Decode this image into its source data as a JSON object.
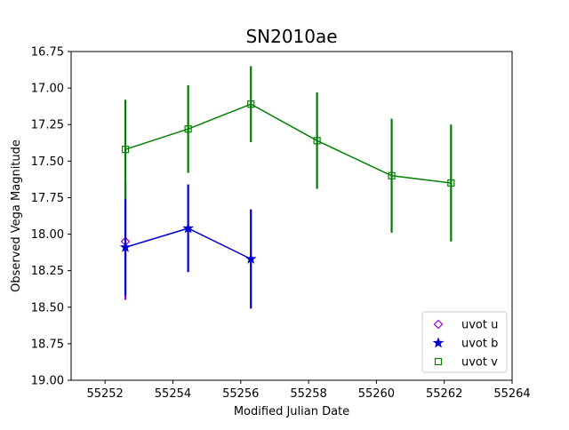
{
  "chart_data": {
    "type": "scatter",
    "title": "SN2010ae",
    "xlabel": "Modified Julian Date",
    "ylabel": "Observed Vega Magnitude",
    "xlim": [
      55251,
      55264
    ],
    "ylim": [
      19.0,
      16.75
    ],
    "y_inverted": true,
    "grid": false,
    "legend_position": "lower right",
    "xticks": [
      "55252",
      "55254",
      "55256",
      "55258",
      "55260",
      "55262",
      "55264"
    ],
    "xtick_values": [
      55252,
      55254,
      55256,
      55258,
      55260,
      55262,
      55264
    ],
    "yticks": [
      "16.75",
      "17.00",
      "17.25",
      "17.50",
      "17.75",
      "18.00",
      "18.25",
      "18.50",
      "18.75",
      "19.00"
    ],
    "ytick_values": [
      16.75,
      17.0,
      17.25,
      17.5,
      17.75,
      18.0,
      18.25,
      18.5,
      18.75,
      19.0
    ],
    "series": [
      {
        "name": "uvot u",
        "color": "#9400D3",
        "marker": "diamond",
        "connect": false,
        "x": [
          55252.6
        ],
        "y": [
          18.05
        ],
        "yerr": [
          0.4
        ]
      },
      {
        "name": "uvot b",
        "color": "#0000CD",
        "marker": "star",
        "connect": true,
        "x": [
          55252.6,
          55254.45,
          55256.3
        ],
        "y": [
          18.09,
          17.96,
          18.17
        ],
        "yerr": [
          0.33,
          0.3,
          0.34
        ]
      },
      {
        "name": "uvot v",
        "color": "#008000",
        "marker": "square",
        "connect": true,
        "x": [
          55252.6,
          55254.45,
          55256.3,
          55258.25,
          55260.45,
          55262.2
        ],
        "y": [
          17.42,
          17.28,
          17.11,
          17.36,
          17.6,
          17.65
        ],
        "yerr": [
          0.34,
          0.3,
          0.26,
          0.33,
          0.39,
          0.4
        ]
      }
    ]
  }
}
